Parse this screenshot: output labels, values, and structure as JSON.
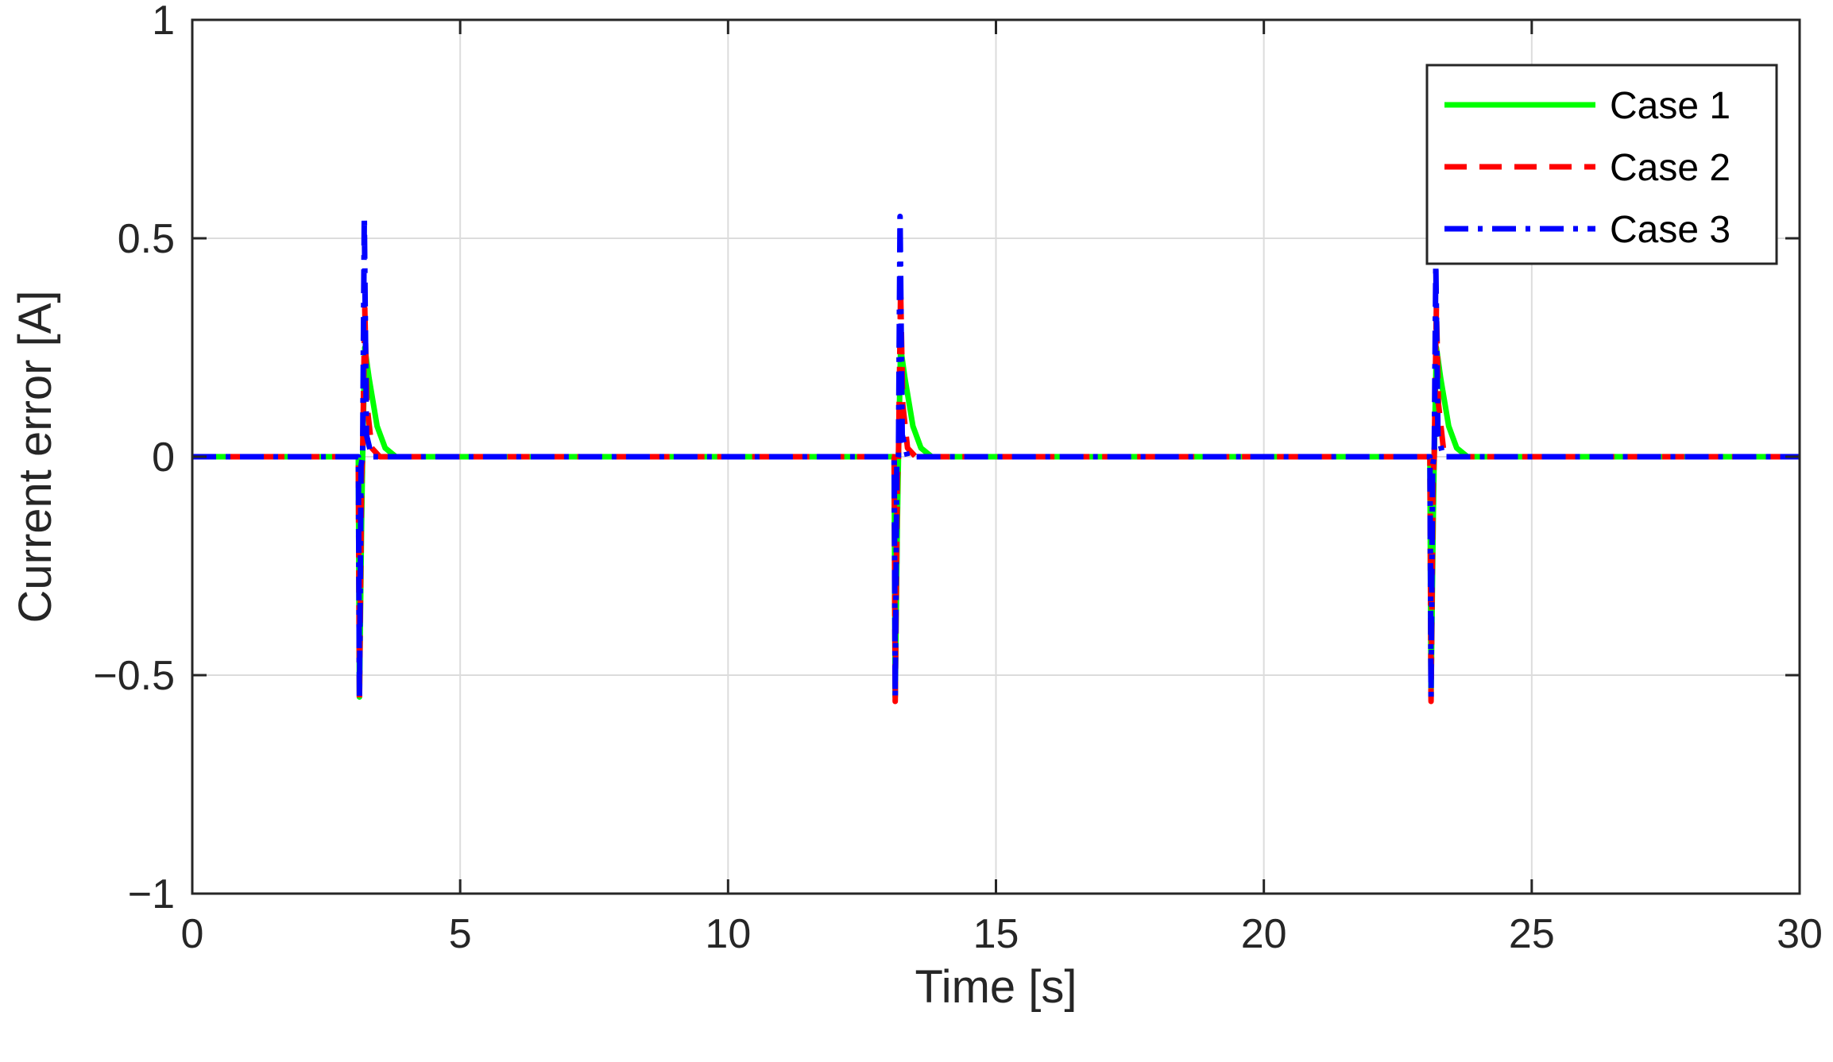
{
  "chart_data": {
    "type": "line",
    "title": "",
    "xlabel": "Time [s]",
    "ylabel": "Current error [A]",
    "xlim": [
      0,
      30
    ],
    "ylim": [
      -1,
      1
    ],
    "xticks": [
      0,
      5,
      10,
      15,
      20,
      25,
      30
    ],
    "xtick_labels": [
      "0",
      "5",
      "10",
      "15",
      "20",
      "25",
      "30"
    ],
    "yticks": [
      -1,
      -0.5,
      0,
      0.5,
      1
    ],
    "ytick_labels": [
      "−1",
      "−0.5",
      "0",
      "0.5",
      "1"
    ],
    "grid": true,
    "legend_position": "top-right",
    "series": [
      {
        "name": "Case 1",
        "color": "#00ff00",
        "style": "solid",
        "x": [
          0,
          3.1,
          3.12,
          3.16,
          3.18,
          3.22,
          3.3,
          3.45,
          3.6,
          3.8,
          13.1,
          13.12,
          13.16,
          13.18,
          13.22,
          13.3,
          13.45,
          13.6,
          13.8,
          23.1,
          23.12,
          23.16,
          23.18,
          23.22,
          23.3,
          23.45,
          23.6,
          23.8,
          30
        ],
        "y": [
          0,
          0,
          -0.55,
          -0.15,
          0,
          0.25,
          0.18,
          0.07,
          0.02,
          0,
          0,
          -0.55,
          -0.15,
          0,
          0.25,
          0.18,
          0.07,
          0.02,
          0,
          0,
          -0.55,
          -0.15,
          0,
          0.25,
          0.18,
          0.07,
          0.02,
          0,
          0
        ]
      },
      {
        "name": "Case 2",
        "color": "#ff0000",
        "style": "dashed",
        "x": [
          0,
          3.1,
          3.12,
          3.16,
          3.18,
          3.22,
          3.26,
          3.35,
          3.5,
          13.1,
          13.12,
          13.16,
          13.18,
          13.22,
          13.26,
          13.35,
          13.5,
          23.1,
          23.12,
          23.16,
          23.18,
          23.22,
          23.26,
          23.35,
          23.5,
          30
        ],
        "y": [
          0,
          0,
          -0.56,
          -0.05,
          0,
          0.34,
          0.12,
          0.02,
          0,
          0,
          -0.56,
          -0.05,
          0,
          0.38,
          0.12,
          0.02,
          0,
          0,
          -0.56,
          -0.05,
          0,
          0.34,
          0.12,
          0.02,
          0,
          0
        ]
      },
      {
        "name": "Case 3",
        "color": "#0000ff",
        "style": "dashdot",
        "x": [
          0,
          3.1,
          3.12,
          3.15,
          3.18,
          3.21,
          3.25,
          3.35,
          13.1,
          13.12,
          13.15,
          13.18,
          13.21,
          13.25,
          13.35,
          23.1,
          23.12,
          23.15,
          23.18,
          23.21,
          23.25,
          23.35,
          30
        ],
        "y": [
          0,
          0,
          -0.55,
          -0.02,
          0,
          0.55,
          0.05,
          0,
          0,
          -0.55,
          -0.02,
          0,
          0.55,
          0.05,
          0,
          0,
          -0.55,
          -0.02,
          0,
          0.44,
          0.05,
          0,
          0
        ]
      }
    ]
  }
}
